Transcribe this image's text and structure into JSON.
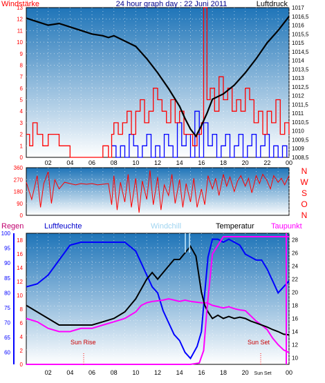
{
  "colors": {
    "wind": "#ff0000",
    "gust": "#0000ff",
    "pressure": "#000000",
    "direction": "#ff0000",
    "humidity": "#0000ff",
    "temperature": "#000000",
    "windchill": "#c8ecff",
    "dewpoint": "#ff00ff",
    "rain": "#ff0000",
    "sky_top": "#1e74b8",
    "sky_bottom": "#ffffff"
  },
  "header": {
    "left_label": "Windstärke",
    "title": "24 hour graph day : 22 Juni 2011",
    "right_label": "Luftdruck"
  },
  "time_axis": {
    "labels": [
      "02",
      "04",
      "06",
      "08",
      "10",
      "12",
      "14",
      "16",
      "18",
      "20",
      "22",
      "00"
    ],
    "hours": [
      2,
      4,
      6,
      8,
      10,
      12,
      14,
      16,
      18,
      20,
      22,
      24
    ]
  },
  "lower_time_axis": {
    "labels": [
      "02",
      "04",
      "06",
      "08",
      "10",
      "12",
      "14",
      "16",
      "18",
      "20",
      "00"
    ],
    "hours": [
      2,
      4,
      6,
      8,
      10,
      12,
      14,
      16,
      18,
      20,
      24
    ],
    "extra_label": "Sun Set",
    "extra_hour": 21.6
  },
  "lower_header": {
    "rain": "Regen",
    "humidity": "Luftfeuchte",
    "windchill": "Windchill",
    "temperature": "Temperatur",
    "dewpoint": "Taupunkt"
  },
  "annotations": {
    "sunrise": "Sun Rise",
    "sunset": "Sun Set"
  },
  "chart_data": [
    {
      "type": "line",
      "panel": "wind-pressure",
      "x_range": [
        0,
        24
      ],
      "left_axis": {
        "label": "Windstärke",
        "ticks": [
          "0",
          "1",
          "2",
          "3",
          "4",
          "5",
          "6",
          "7",
          "8",
          "9",
          "10",
          "11",
          "12",
          "13"
        ],
        "range": [
          0,
          13
        ]
      },
      "right_axis": {
        "label": "Luftdruck",
        "ticks": [
          "1008,5",
          "1009",
          "1009,5",
          "1010",
          "1010,5",
          "1011",
          "1011,5",
          "1012",
          "1012,5",
          "1013",
          "1013,5",
          "1014",
          "1014,5",
          "1015",
          "1015,5",
          "1016",
          "1016,5",
          "1017"
        ],
        "range": [
          1008.5,
          1017
        ]
      },
      "series": [
        {
          "axis": "left",
          "x": [
            0,
            0.3,
            0.6,
            1.0,
            1.5,
            2.0,
            2.5,
            3.0,
            3.5,
            4.0,
            4.5,
            5.0,
            5.5,
            6.0,
            6.5,
            7.0,
            7.5,
            7.8,
            8.0,
            8.4,
            8.8,
            9.2,
            9.6,
            10.0,
            10.4,
            10.8,
            11.2,
            11.6,
            12.0,
            12.4,
            12.8,
            13.2,
            13.6,
            14.0,
            14.4,
            14.8,
            15.2,
            15.6,
            16.0,
            16.2,
            16.5,
            16.8,
            17.2,
            17.6,
            18.0,
            18.4,
            18.8,
            19.2,
            19.6,
            20.0,
            20.4,
            20.8,
            21.2,
            21.6,
            22.0,
            22.4,
            22.8,
            23.2,
            23.6,
            24.0
          ],
          "values": [
            2,
            1,
            3,
            2,
            1,
            2,
            2,
            1,
            1,
            0,
            0,
            0,
            0,
            0,
            0,
            1,
            0,
            2,
            3,
            2,
            3,
            4,
            2,
            4,
            5,
            3,
            4,
            6,
            5,
            4,
            3,
            5,
            3,
            4,
            2,
            2,
            1,
            2,
            3,
            13,
            5,
            6,
            4,
            7,
            5,
            6,
            4,
            5,
            4,
            6,
            5,
            3,
            4,
            2,
            4,
            3,
            5,
            2,
            3,
            2
          ]
        },
        {
          "axis": "left",
          "x": [
            7.8,
            8.2,
            8.6,
            9.0,
            9.4,
            9.8,
            10.2,
            10.6,
            11.0,
            11.4,
            11.8,
            12.2,
            12.6,
            13.0,
            13.4,
            13.8,
            14.2,
            14.6,
            15.0,
            15.4,
            15.8,
            16.2,
            16.6,
            17.0,
            17.4,
            17.8,
            18.2,
            18.6,
            19.0,
            19.4,
            19.8,
            20.2,
            20.6,
            21.0,
            21.4,
            21.8,
            22.2,
            22.6,
            23.0,
            23.4,
            23.8
          ],
          "values": [
            1,
            0,
            1,
            0,
            2,
            1,
            0,
            1,
            2,
            0,
            1,
            0,
            2,
            1,
            0,
            3,
            1,
            2,
            0,
            4,
            0,
            3,
            1,
            2,
            0,
            1,
            2,
            0,
            1,
            2,
            0,
            1,
            2,
            0,
            1,
            2,
            0,
            1,
            0,
            1,
            0
          ]
        },
        {
          "axis": "right",
          "x": [
            0,
            1,
            2,
            3,
            4,
            5,
            6,
            7,
            7.5,
            8,
            9,
            10,
            11,
            12,
            13,
            14,
            14.5,
            15,
            15.5,
            16,
            16.5,
            17,
            18,
            19,
            20,
            21,
            22,
            23,
            24
          ],
          "values": [
            1016.4,
            1016.2,
            1016.0,
            1016.1,
            1015.9,
            1015.7,
            1015.5,
            1015.4,
            1015.3,
            1015.4,
            1015.1,
            1014.8,
            1014.1,
            1013.3,
            1012.4,
            1011.4,
            1010.7,
            1010.1,
            1009.7,
            1010.3,
            1011.0,
            1011.8,
            1012.1,
            1012.6,
            1013.3,
            1014.1,
            1015.0,
            1015.7,
            1016.5
          ]
        }
      ]
    },
    {
      "type": "line",
      "panel": "wind-direction",
      "x_range": [
        0,
        24
      ],
      "left_axis": {
        "ticks": [
          "0",
          "90",
          "180",
          "270",
          "360"
        ],
        "range": [
          0,
          360
        ]
      },
      "right_axis": {
        "ticks": [
          "N",
          "W",
          "S",
          "O",
          "N"
        ]
      },
      "series": [
        {
          "x": [
            0,
            0.5,
            1,
            1.3,
            1.6,
            2,
            2.3,
            2.6,
            3,
            3.5,
            4,
            4.5,
            5,
            5.5,
            6,
            6.5,
            7,
            7.5,
            7.8,
            8,
            8.3,
            8.6,
            9,
            9.3,
            9.6,
            10,
            10.3,
            10.6,
            11,
            11.3,
            11.6,
            12,
            12.3,
            12.6,
            13,
            13.3,
            13.6,
            14,
            14.3,
            14.6,
            15,
            15.3,
            15.6,
            16,
            16.3,
            16.6,
            17,
            17.3,
            17.6,
            18,
            18.3,
            18.6,
            19,
            19.3,
            19.6,
            20,
            20.3,
            20.6,
            21,
            21.3,
            21.6,
            22,
            22.3,
            22.6,
            23,
            23.3,
            23.6,
            24
          ],
          "values": [
            250,
            120,
            300,
            60,
            240,
            330,
            90,
            270,
            200,
            250,
            240,
            230,
            240,
            235,
            240,
            230,
            235,
            240,
            80,
            300,
            40,
            250,
            100,
            310,
            60,
            280,
            20,
            260,
            120,
            340,
            80,
            290,
            40,
            230,
            150,
            310,
            90,
            270,
            60,
            240,
            100,
            280,
            60,
            200,
            80,
            300,
            200,
            280,
            150,
            310,
            220,
            290,
            180,
            260,
            300,
            220,
            280,
            170,
            300,
            240,
            310,
            260,
            200,
            300,
            250,
            280,
            230,
            300
          ]
        }
      ]
    },
    {
      "type": "line",
      "panel": "humidity-temperature",
      "x_range": [
        0,
        24
      ],
      "left_axis": {
        "label": "Regen",
        "ticks": [
          "0",
          "2",
          "4",
          "6",
          "8",
          "10",
          "12",
          "14",
          "16",
          "18"
        ],
        "range": [
          0,
          19
        ]
      },
      "humidity_axis": {
        "label": "Luftfeuchte",
        "ticks": [
          "60",
          "65",
          "70",
          "75",
          "80",
          "85",
          "90",
          "95",
          "100"
        ],
        "range": [
          56,
          100
        ]
      },
      "right_axis": {
        "label": "Temperatur",
        "ticks": [
          "10",
          "12",
          "14",
          "16",
          "18",
          "20",
          "22",
          "24",
          "26",
          "28"
        ],
        "range": [
          9,
          29
        ]
      },
      "series": [
        {
          "axis": "humidity",
          "x": [
            0,
            1,
            2,
            3,
            4,
            5,
            6,
            7,
            8,
            9,
            10,
            10.5,
            11,
            11.5,
            12,
            12.5,
            13,
            13.5,
            14,
            14.5,
            15,
            15.3,
            15.6,
            16,
            16.3,
            16.6,
            17,
            17.5,
            18,
            18.5,
            19,
            19.5,
            20,
            20.5,
            21,
            21.5,
            22,
            22.5,
            23,
            23.5,
            24
          ],
          "values": [
            82,
            83,
            86,
            91,
            96,
            97,
            97,
            97,
            97,
            97,
            94,
            90,
            86,
            82,
            80,
            74,
            70,
            66,
            64,
            60,
            58,
            60,
            62,
            67,
            80,
            92,
            98,
            98,
            97,
            98,
            97,
            96,
            93,
            92,
            91,
            91,
            88,
            84,
            80,
            82,
            84
          ]
        },
        {
          "axis": "right",
          "x": [
            0,
            1,
            2,
            3,
            4,
            5,
            6,
            7,
            8,
            9,
            9.5,
            10,
            10.5,
            11,
            11.5,
            12,
            12.5,
            13,
            13.5,
            14,
            14.5,
            15,
            15.5,
            16,
            16.3,
            16.6,
            17,
            17.5,
            18,
            18.5,
            19,
            19.5,
            20,
            20.5,
            21,
            21.5,
            22,
            22.5,
            23,
            23.5,
            24
          ],
          "values": [
            18,
            17,
            16,
            15,
            15,
            15,
            15,
            15.5,
            16,
            17,
            18,
            19,
            20.5,
            22,
            23,
            22,
            23,
            24,
            25,
            25,
            26,
            27,
            25.5,
            20,
            18,
            17,
            16,
            16.5,
            16,
            16.3,
            16,
            16.2,
            16,
            15.6,
            15.3,
            15,
            14.7,
            14.3,
            14,
            13.6,
            13.5
          ]
        },
        {
          "axis": "right",
          "x": [
            0,
            1,
            2,
            3,
            4,
            5,
            6,
            7,
            8,
            9,
            10,
            10.5,
            11,
            11.5,
            12,
            12.5,
            13,
            13.5,
            14,
            14.5,
            15,
            15.5,
            16,
            16.5,
            17,
            17.5,
            18,
            18.5,
            19,
            19.5,
            20,
            20.5,
            21,
            21.5,
            22,
            22.5,
            23,
            23.5,
            24
          ],
          "values": [
            16,
            15.5,
            14.5,
            14,
            14,
            14.5,
            14.5,
            15,
            15.5,
            16,
            17,
            18,
            18.4,
            18.6,
            18.7,
            18.8,
            19,
            18.8,
            18.6,
            18.8,
            18.6,
            18.5,
            18.4,
            18.4,
            18.0,
            17.8,
            17.6,
            17.8,
            17.5,
            17.3,
            17.2,
            16.4,
            15.6,
            15.0,
            14.3,
            13.0,
            12.0,
            11.2,
            10.8
          ]
        },
        {
          "axis": "left",
          "x": [
            0,
            5,
            10,
            15,
            15.8,
            16.2,
            16.5,
            17,
            18,
            19,
            20,
            21,
            22,
            23,
            24
          ],
          "values": [
            0,
            0,
            0,
            0,
            0.2,
            2,
            8,
            16,
            18.5,
            18.5,
            18.5,
            18.5,
            18.5,
            18.5,
            18.5
          ]
        }
      ]
    }
  ]
}
